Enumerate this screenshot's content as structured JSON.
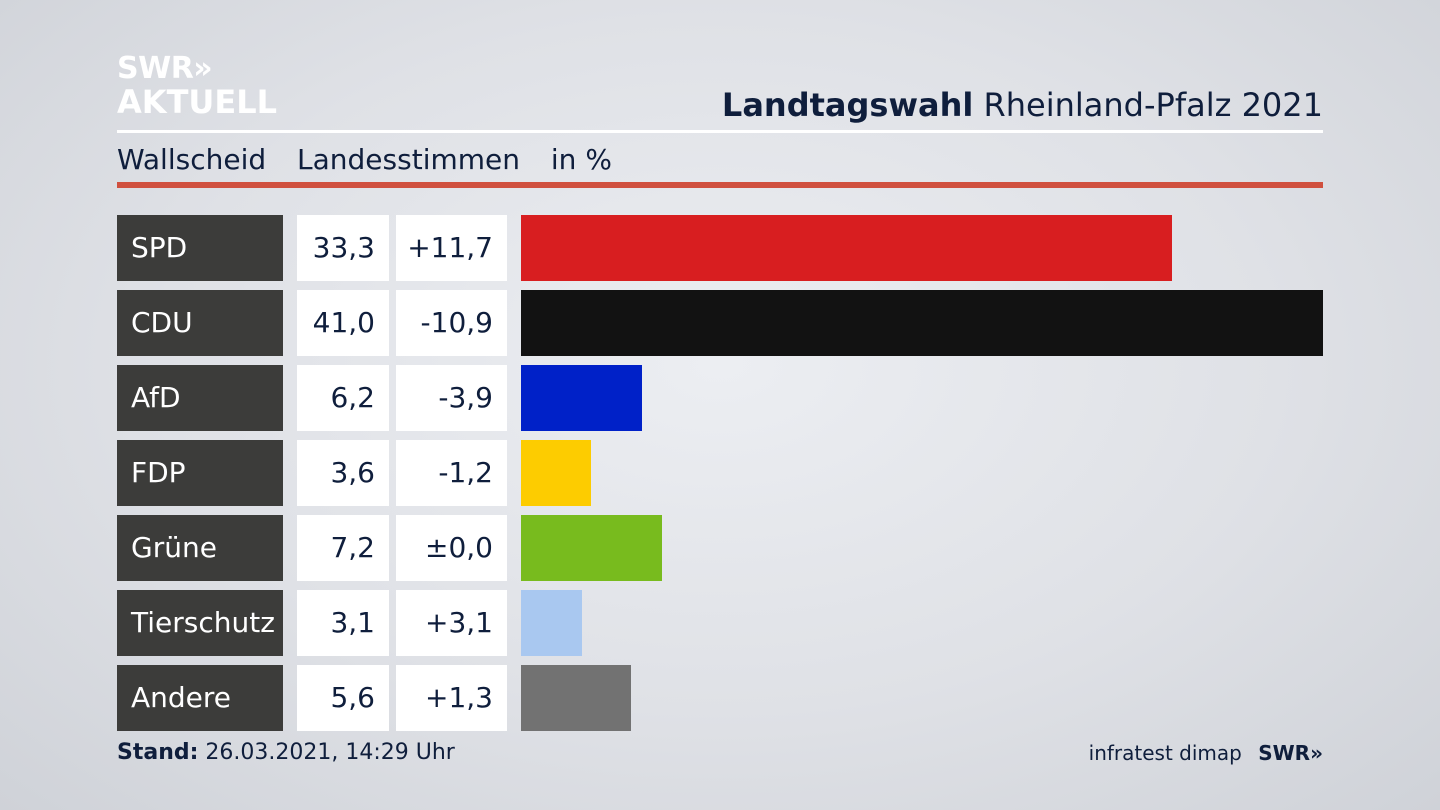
{
  "logo": {
    "line1": "SWR»",
    "line2": "AKTUELL"
  },
  "header": {
    "title_bold": "Landtagswahl",
    "title_rest": "Rheinland-Pfalz 2021"
  },
  "subheader": {
    "place": "Wallscheid",
    "vote_type": "Landesstimmen",
    "unit": "in %"
  },
  "footer": {
    "stand_label": "Stand:",
    "stand_value": "26.03.2021, 14:29 Uhr",
    "source": "infratest dimap",
    "brand": "SWR»"
  },
  "chart_data": {
    "type": "bar",
    "orientation": "horizontal",
    "xlim": [
      0,
      41.0
    ],
    "categories": [
      "SPD",
      "CDU",
      "AfD",
      "FDP",
      "Grüne",
      "Tierschutz",
      "Andere"
    ],
    "values": [
      33.3,
      41.0,
      6.2,
      3.6,
      7.2,
      3.1,
      5.6
    ],
    "value_labels": [
      "33,3",
      "41,0",
      "6,2",
      "3,6",
      "7,2",
      "3,1",
      "5,6"
    ],
    "diff_labels": [
      "+11,7",
      "-10,9",
      "-3,9",
      "-1,2",
      "±0,0",
      "+3,1",
      "+1,3"
    ],
    "colors": [
      "#d81e20",
      "#121212",
      "#0021c8",
      "#fdcc00",
      "#78bb1e",
      "#a9c8f0",
      "#727272"
    ]
  }
}
